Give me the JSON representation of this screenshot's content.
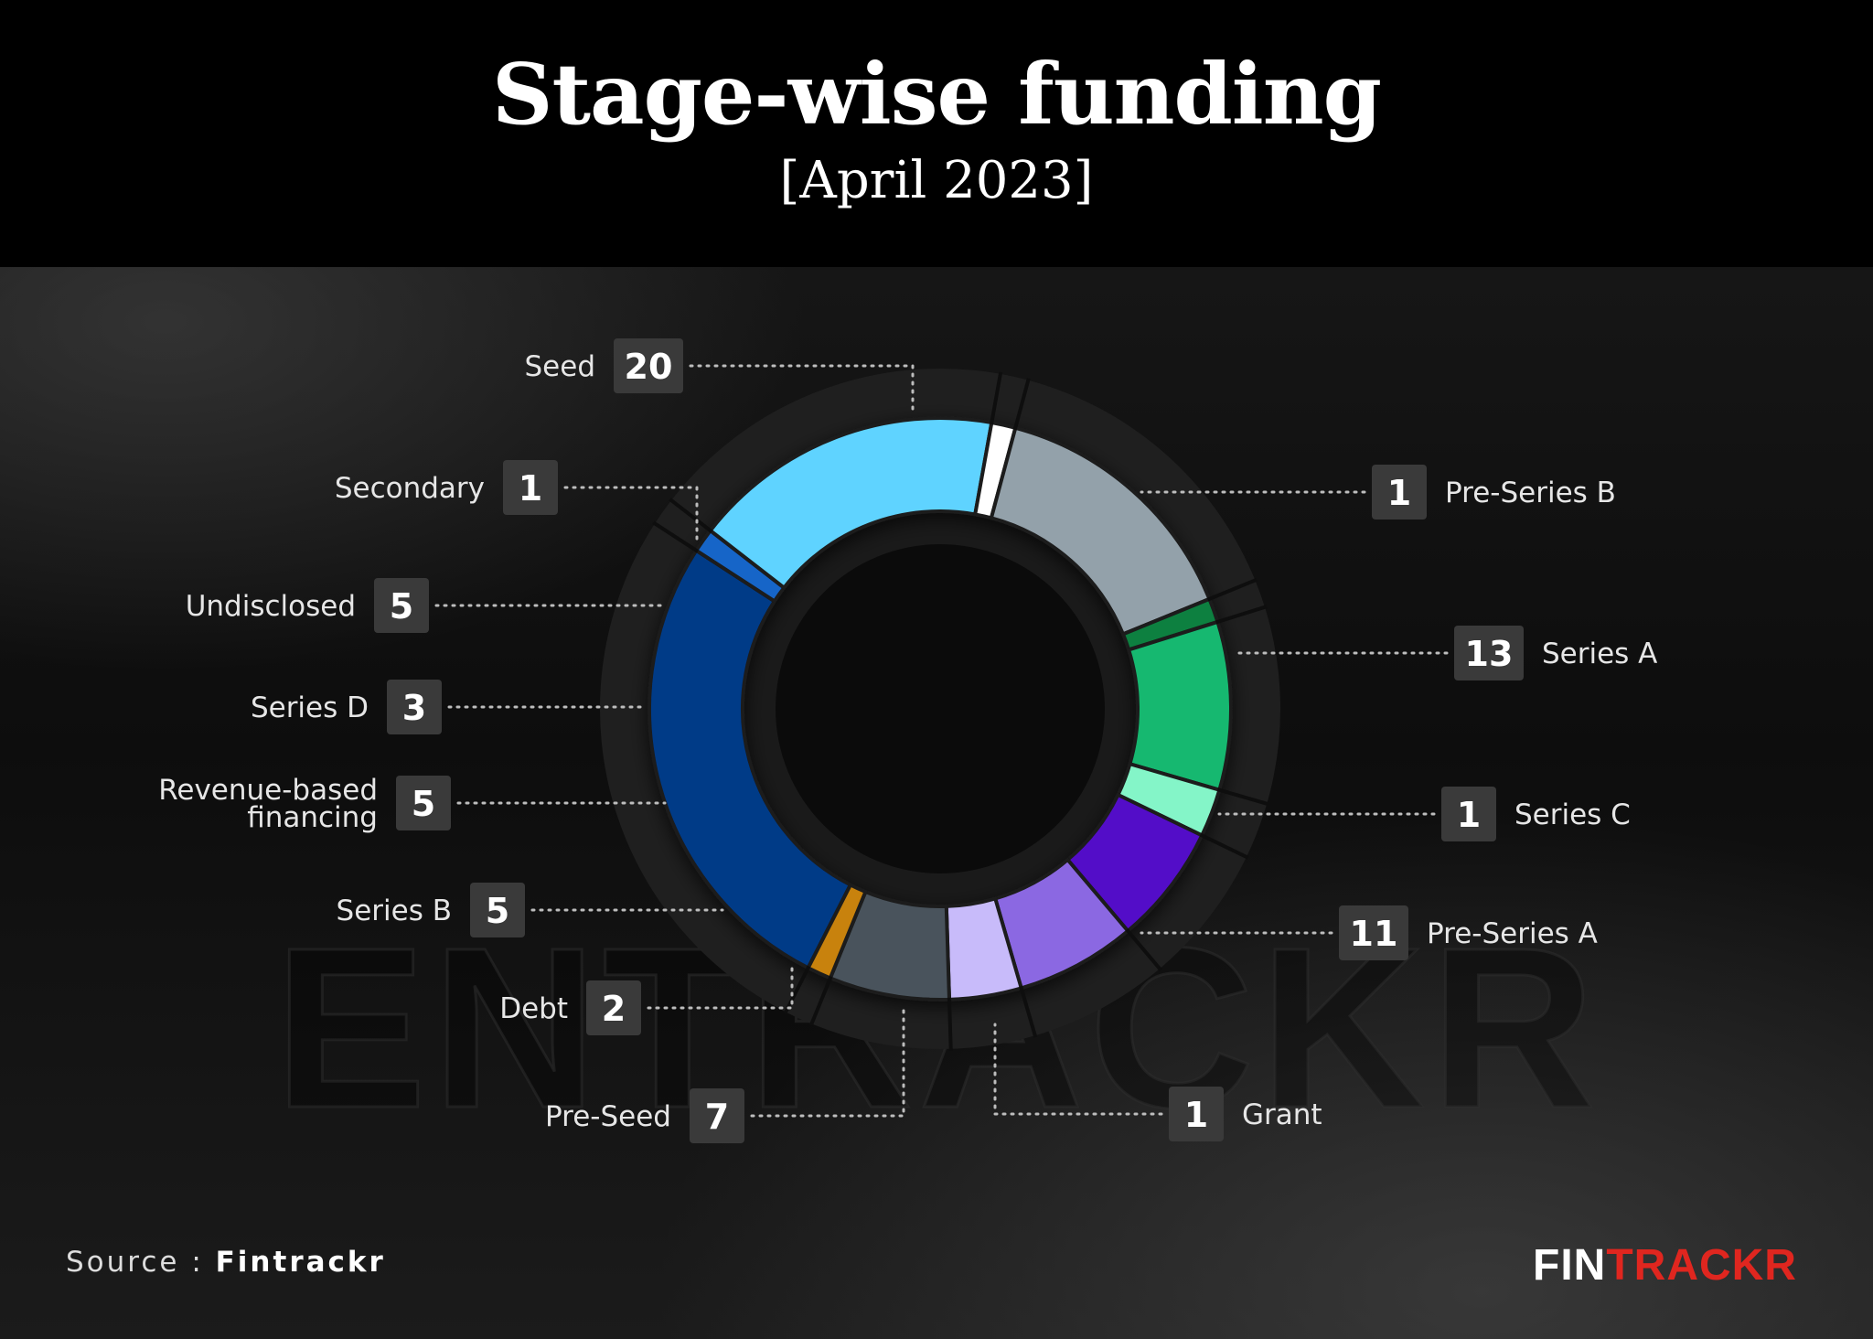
{
  "title": "Stage-wise funding",
  "subtitle": "[April 2023]",
  "watermark": "ENTRACKR",
  "source": {
    "label": "Source : ",
    "name": "Fintrackr"
  },
  "logo": {
    "part1": "FIN",
    "part2": "TRACKR"
  },
  "colors": {
    "background": "#000000",
    "logo_accent": "#e0261f"
  },
  "chart_data": {
    "type": "pie",
    "title": "Stage-wise funding",
    "subtitle": "[April 2023]",
    "legend": "none",
    "categories": [
      "Seed",
      "Pre-Series B",
      "Series A",
      "Series C",
      "Pre-Series A",
      "Grant",
      "Pre-Seed",
      "Debt",
      "Series B",
      "Revenue-based financing",
      "Series D",
      "Undisclosed",
      "Secondary"
    ],
    "label_lines": [
      [
        "Seed"
      ],
      [
        "Pre-Series B"
      ],
      [
        "Series A"
      ],
      [
        "Series C"
      ],
      [
        "Pre-Series A"
      ],
      [
        "Grant"
      ],
      [
        "Pre-Seed"
      ],
      [
        "Debt"
      ],
      [
        "Series B"
      ],
      [
        "Revenue-based",
        "financing"
      ],
      [
        "Series D"
      ],
      [
        "Undisclosed"
      ],
      [
        "Secondary"
      ]
    ],
    "values": [
      20,
      1,
      13,
      1,
      11,
      1,
      7,
      2,
      5,
      5,
      3,
      5,
      1
    ],
    "colors": [
      "#003a87",
      "#1565c8",
      "#5fd3ff",
      "#ffffff",
      "#93a1aa",
      "#0b8040",
      "#19b870",
      "#84f5c8",
      "#5210c8",
      "#8b68e2",
      "#c8bbfa",
      "#48535b",
      "#c8820a"
    ]
  }
}
